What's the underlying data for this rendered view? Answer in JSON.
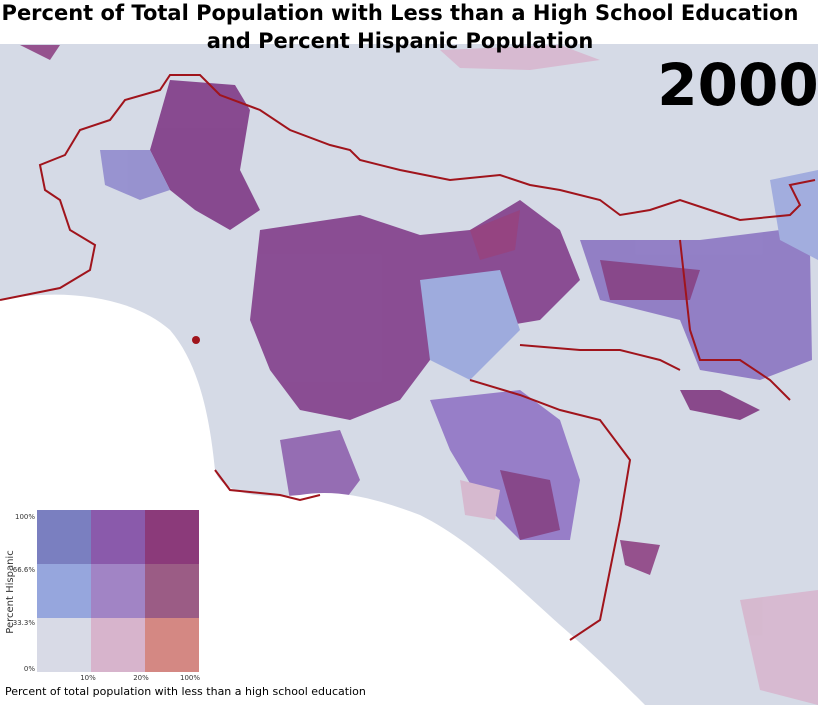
{
  "title": {
    "line1": "Percent of Total Population with Less than a High School Education",
    "line2": "and Percent Hispanic Population"
  },
  "year": "2000",
  "legend": {
    "y_label": "Percent Hispanic",
    "y_ticks": [
      "100%",
      "66.6%",
      "33.3%",
      "0%"
    ],
    "x_ticks": [
      "10%",
      "20%",
      "100%"
    ],
    "x_label": "Percent of total population with less than a high school education"
  }
}
